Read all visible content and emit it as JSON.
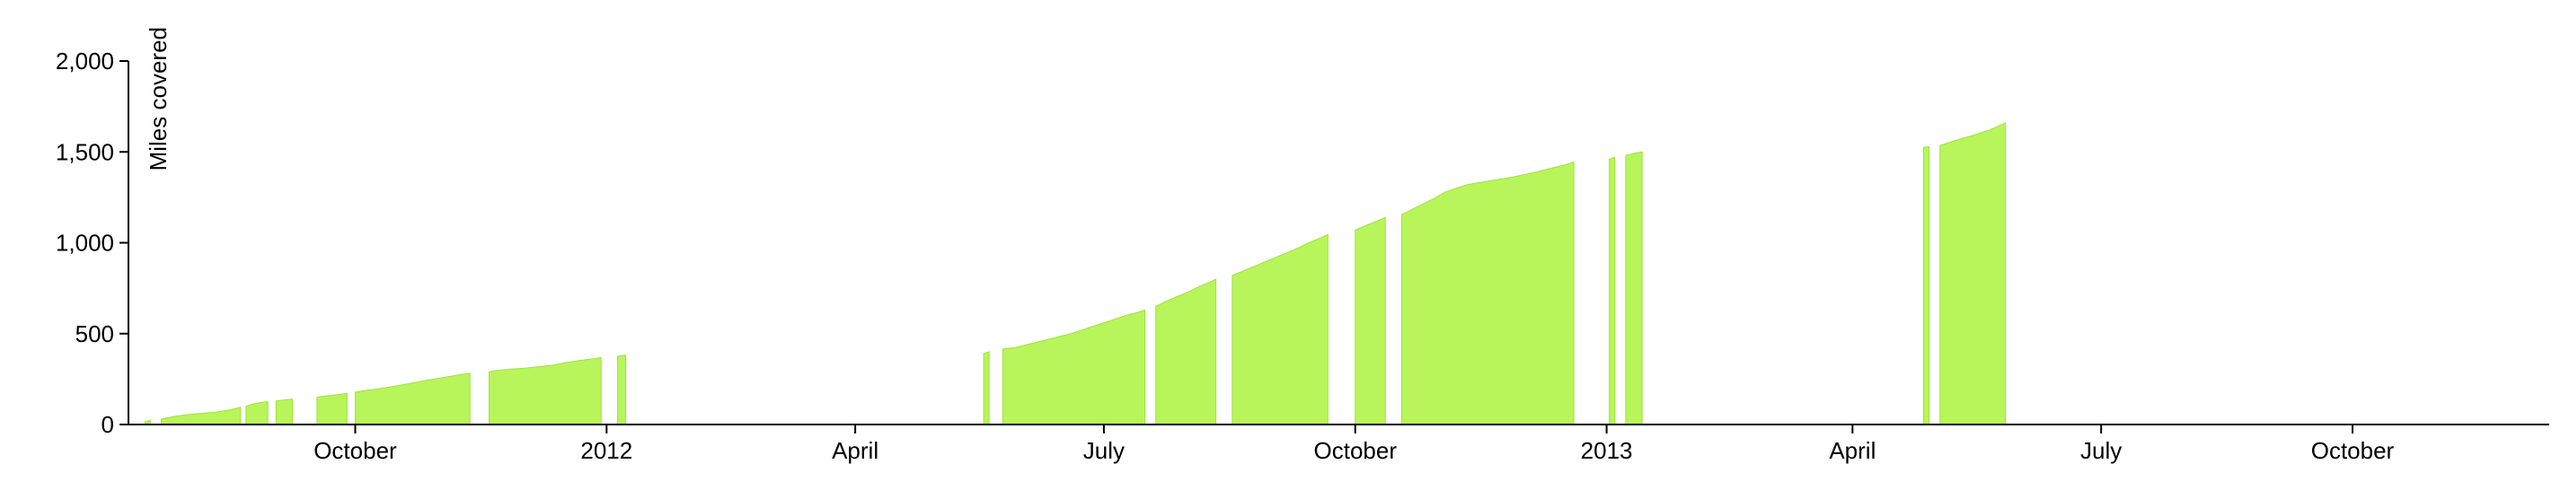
{
  "chart_data": {
    "type": "area",
    "title": "",
    "xlabel": "",
    "ylabel": "Miles covered",
    "ylim": [
      0,
      2000
    ],
    "xlim": [
      "2011-07-10",
      "2013-12-12"
    ],
    "y_ticks": [
      {
        "value": 0,
        "label": "0"
      },
      {
        "value": 500,
        "label": "500"
      },
      {
        "value": 1000,
        "label": "1,000"
      },
      {
        "value": 1500,
        "label": "1,500"
      },
      {
        "value": 2000,
        "label": "2,000"
      }
    ],
    "x_ticks": [
      {
        "date": "2011-10-01",
        "label": "October"
      },
      {
        "date": "2012-01-01",
        "label": "2012"
      },
      {
        "date": "2012-04-01",
        "label": "April"
      },
      {
        "date": "2012-07-01",
        "label": "July"
      },
      {
        "date": "2012-10-01",
        "label": "October"
      },
      {
        "date": "2013-01-01",
        "label": "2013"
      },
      {
        "date": "2013-04-01",
        "label": "April"
      },
      {
        "date": "2013-07-01",
        "label": "July"
      },
      {
        "date": "2013-10-01",
        "label": "October"
      }
    ],
    "grid": false,
    "fill_color": "#b8f55a",
    "stroke_color": "#9fe23c",
    "series": [
      {
        "segments": [
          [
            [
              "2011-07-16",
              15
            ],
            [
              "2011-07-18",
              22
            ]
          ],
          [
            [
              "2011-07-22",
              30
            ],
            [
              "2011-07-27",
              45
            ],
            [
              "2011-08-01",
              55
            ],
            [
              "2011-08-06",
              62
            ],
            [
              "2011-08-11",
              68
            ],
            [
              "2011-08-16",
              80
            ],
            [
              "2011-08-20",
              95
            ]
          ],
          [
            [
              "2011-08-22",
              100
            ],
            [
              "2011-08-25",
              115
            ],
            [
              "2011-08-28",
              122
            ],
            [
              "2011-08-30",
              126
            ]
          ],
          [
            [
              "2011-09-02",
              130
            ],
            [
              "2011-09-05",
              135
            ],
            [
              "2011-09-08",
              140
            ]
          ],
          [
            [
              "2011-09-17",
              150
            ],
            [
              "2011-09-21",
              158
            ],
            [
              "2011-09-25",
              165
            ],
            [
              "2011-09-28",
              172
            ]
          ],
          [
            [
              "2011-10-01",
              178
            ],
            [
              "2011-10-05",
              188
            ],
            [
              "2011-10-09",
              195
            ],
            [
              "2011-10-13",
              205
            ],
            [
              "2011-10-17",
              215
            ],
            [
              "2011-10-21",
              226
            ],
            [
              "2011-10-25",
              238
            ],
            [
              "2011-10-29",
              248
            ],
            [
              "2011-11-02",
              258
            ],
            [
              "2011-11-06",
              268
            ],
            [
              "2011-11-09",
              276
            ],
            [
              "2011-11-12",
              282
            ]
          ],
          [
            [
              "2011-11-19",
              290
            ],
            [
              "2011-11-22",
              298
            ],
            [
              "2011-11-27",
              305
            ],
            [
              "2011-12-02",
              310
            ],
            [
              "2011-12-07",
              318
            ],
            [
              "2011-12-12",
              326
            ],
            [
              "2011-12-17",
              340
            ],
            [
              "2011-12-22",
              352
            ],
            [
              "2011-12-27",
              362
            ],
            [
              "2011-12-30",
              368
            ]
          ],
          [
            [
              "2012-01-05",
              375
            ],
            [
              "2012-01-08",
              382
            ]
          ],
          [
            [
              "2012-05-18",
              390
            ],
            [
              "2012-05-20",
              400
            ]
          ],
          [
            [
              "2012-05-25",
              415
            ],
            [
              "2012-05-30",
              425
            ],
            [
              "2012-06-03",
              440
            ],
            [
              "2012-06-07",
              455
            ],
            [
              "2012-06-11",
              470
            ],
            [
              "2012-06-15",
              485
            ],
            [
              "2012-06-19",
              500
            ],
            [
              "2012-06-23",
              520
            ],
            [
              "2012-06-27",
              540
            ],
            [
              "2012-07-01",
              560
            ],
            [
              "2012-07-05",
              580
            ],
            [
              "2012-07-09",
              600
            ],
            [
              "2012-07-13",
              615
            ],
            [
              "2012-07-16",
              630
            ]
          ],
          [
            [
              "2012-07-20",
              650
            ],
            [
              "2012-07-24",
              680
            ],
            [
              "2012-07-28",
              705
            ],
            [
              "2012-08-01",
              730
            ],
            [
              "2012-08-05",
              760
            ],
            [
              "2012-08-09",
              785
            ],
            [
              "2012-08-11",
              800
            ]
          ],
          [
            [
              "2012-08-17",
              820
            ],
            [
              "2012-08-21",
              845
            ],
            [
              "2012-08-25",
              870
            ],
            [
              "2012-08-29",
              895
            ],
            [
              "2012-09-02",
              920
            ],
            [
              "2012-09-06",
              945
            ],
            [
              "2012-09-10",
              970
            ],
            [
              "2012-09-14",
              1000
            ],
            [
              "2012-09-18",
              1025
            ],
            [
              "2012-09-21",
              1045
            ]
          ],
          [
            [
              "2012-10-01",
              1070
            ],
            [
              "2012-10-05",
              1095
            ],
            [
              "2012-10-09",
              1120
            ],
            [
              "2012-10-12",
              1140
            ]
          ],
          [
            [
              "2012-10-18",
              1155
            ],
            [
              "2012-10-22",
              1185
            ],
            [
              "2012-10-26",
              1215
            ],
            [
              "2012-10-30",
              1245
            ],
            [
              "2012-11-03",
              1280
            ],
            [
              "2012-11-07",
              1300
            ],
            [
              "2012-11-11",
              1320
            ],
            [
              "2012-11-15",
              1330
            ],
            [
              "2012-11-19",
              1340
            ],
            [
              "2012-11-23",
              1350
            ],
            [
              "2012-11-27",
              1360
            ],
            [
              "2012-12-01",
              1372
            ],
            [
              "2012-12-05",
              1385
            ],
            [
              "2012-12-09",
              1400
            ],
            [
              "2012-12-13",
              1415
            ],
            [
              "2012-12-17",
              1430
            ],
            [
              "2012-12-20",
              1445
            ]
          ],
          [
            [
              "2013-01-02",
              1460
            ],
            [
              "2013-01-04",
              1470
            ]
          ],
          [
            [
              "2013-01-08",
              1480
            ],
            [
              "2013-01-11",
              1492
            ],
            [
              "2013-01-14",
              1500
            ]
          ],
          [
            [
              "2013-04-27",
              1525
            ],
            [
              "2013-04-29",
              1528
            ]
          ],
          [
            [
              "2013-05-03",
              1535
            ],
            [
              "2013-05-06",
              1550
            ],
            [
              "2013-05-09",
              1565
            ],
            [
              "2013-05-12",
              1578
            ],
            [
              "2013-05-15",
              1590
            ],
            [
              "2013-05-18",
              1605
            ],
            [
              "2013-05-21",
              1620
            ],
            [
              "2013-05-24",
              1640
            ],
            [
              "2013-05-27",
              1660
            ]
          ]
        ]
      }
    ]
  }
}
